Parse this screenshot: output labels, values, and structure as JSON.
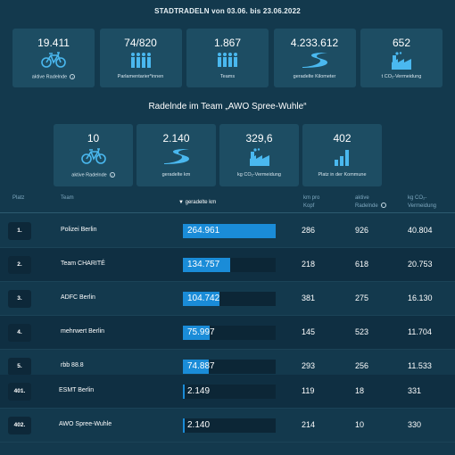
{
  "header": {
    "title": "STADTRADELN von 03.06. bis 23.06.2022"
  },
  "colors": {
    "background": "#13394d",
    "card": "#1d4d63",
    "bar": "#1a8cd8",
    "bar_track": "#0c2636"
  },
  "city_stats": [
    {
      "value": "19.411",
      "label": "aktive Radelnde",
      "icon": "bicycle-icon",
      "info": true
    },
    {
      "value": "74/820",
      "label": "Parlamentarier*innen",
      "icon": "parliament-people-icon",
      "info": false
    },
    {
      "value": "1.867",
      "label": "Teams",
      "icon": "team-icon",
      "info": false
    },
    {
      "value": "4.233.612",
      "label": "geradelte Kilometer",
      "icon": "road-icon",
      "info": false
    },
    {
      "value": "652",
      "label": "t CO₂-Vermeidung",
      "icon": "factory-icon",
      "info": false
    }
  ],
  "team_section": {
    "heading": "Radelnde im Team „AWO Spree-Wuhle“"
  },
  "team_stats": [
    {
      "value": "10",
      "label": "aktive Radelnde",
      "icon": "bicycle-icon",
      "info": true
    },
    {
      "value": "2.140",
      "label": "geradelte km",
      "icon": "road-icon",
      "info": false
    },
    {
      "value": "329,6",
      "label": "kg CO₂-Vermeidung",
      "icon": "factory-icon",
      "info": false
    },
    {
      "value": "402",
      "label": "Platz in der Kommune",
      "icon": "ranking-icon",
      "info": false
    }
  ],
  "table": {
    "headers": {
      "rank": "Platz",
      "team": "Team",
      "km": "geradelte km",
      "km_per_head": [
        "km pro",
        "Kopf"
      ],
      "active": [
        "aktive",
        "Radelnde"
      ],
      "co2": [
        "kg CO₂-",
        "Vermeidung"
      ]
    },
    "max_km": 264961,
    "rows": [
      {
        "rank": "1.",
        "team": "Polizei Berlin",
        "km": "264.961",
        "km_value": 264961,
        "km_per_head": "286",
        "active": "926",
        "co2": "40.804"
      },
      {
        "rank": "2.",
        "team": "Team CHARITÉ",
        "km": "134.757",
        "km_value": 134757,
        "km_per_head": "218",
        "active": "618",
        "co2": "20.753"
      },
      {
        "rank": "3.",
        "team": "ADFC Berlin",
        "km": "104.742",
        "km_value": 104742,
        "km_per_head": "381",
        "active": "275",
        "co2": "16.130"
      },
      {
        "rank": "4.",
        "team": "mehrwert Berlin",
        "km": "75.997",
        "km_value": 75997,
        "km_per_head": "145",
        "active": "523",
        "co2": "11.704"
      },
      {
        "rank": "5.",
        "team": "rbb 88.8",
        "km": "74.887",
        "km_value": 74887,
        "km_per_head": "293",
        "active": "256",
        "co2": "11.533"
      },
      {
        "rank": "401.",
        "team": "ESMT Berlin",
        "km": "2.149",
        "km_value": 2149,
        "km_per_head": "119",
        "active": "18",
        "co2": "331"
      },
      {
        "rank": "402.",
        "team": "AWO Spree-Wuhle",
        "km": "2.140",
        "km_value": 2140,
        "km_per_head": "214",
        "active": "10",
        "co2": "330"
      }
    ]
  }
}
